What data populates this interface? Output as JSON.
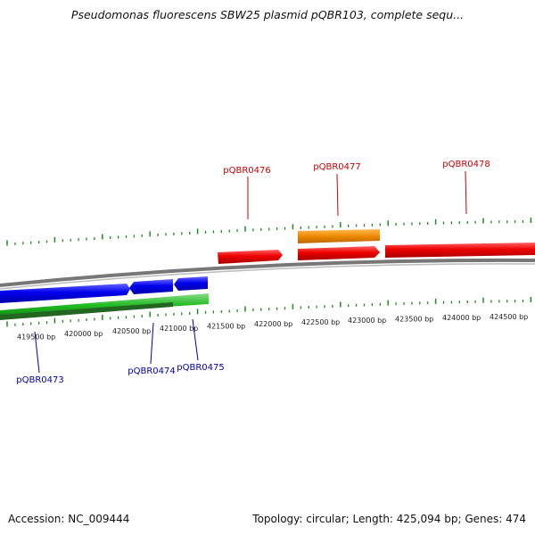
{
  "title": "Pseudomonas fluorescens SBW25 plasmid pQBR103, complete sequ...",
  "footer": {
    "accession": "Accession: NC_009444",
    "topology": "Topology: circular; Length: 425,094 bp; Genes: 474"
  },
  "bp_labels": [
    "419500 bp",
    "420000 bp",
    "420500 bp",
    "421000 bp",
    "421500 bp",
    "422000 bp",
    "422500 bp",
    "423000 bp",
    "423500 bp",
    "424000 bp",
    "424500 bp"
  ],
  "genes": [
    {
      "name": "pQBR0473",
      "color": "#0000aa"
    },
    {
      "name": "pQBR0474",
      "color": "#0000aa"
    },
    {
      "name": "pQBR0475",
      "color": "#0000aa"
    },
    {
      "name": "pQBR0476",
      "color": "#cc0000"
    },
    {
      "name": "pQBR0477",
      "color": "#cc0000"
    },
    {
      "name": "pQBR0478",
      "color": "#cc0000"
    }
  ],
  "colors": {
    "forward_gene": "#e00000",
    "reverse_gene": "#0000dd",
    "rna_gene": "#ee8800",
    "cds_track": "#22aa22",
    "backbone": "#888888",
    "gc_ticks": "#228822"
  }
}
